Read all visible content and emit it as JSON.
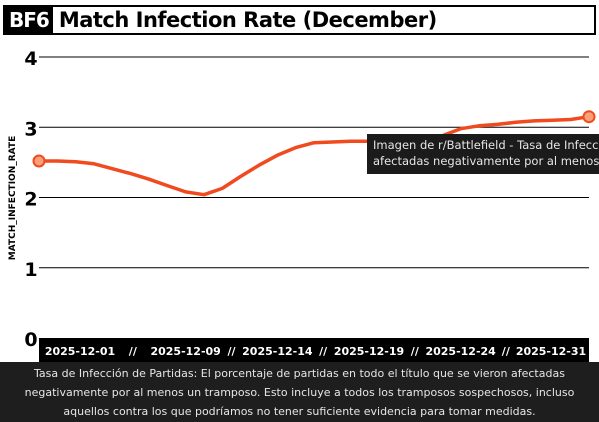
{
  "logo": "BF6",
  "tooltip": {
    "line1": "Imagen de r/Battlefield - Tasa de Infección de",
    "line2": "afectadas negativamente por al menos un tra"
  },
  "caption": "Tasa de Infección de Partidas: El porcentaje de partidas en todo el título que se vieron afectadas negativamente por al menos un tramposo. Esto incluye a todos los tramposos sospechosos, incluso aquellos contra los que podríamos no tener suficiente evidencia para tomar medidas.",
  "colors": {
    "line": "#f04a1e",
    "marker_fill": "#f8a07a",
    "axis_band": "#000000",
    "background": "#ffffff"
  },
  "chart_data": {
    "type": "line",
    "title": "Match Infection Rate (December)",
    "xlabel": "",
    "ylabel": "MATCH_INFECTION_RATE",
    "ylim": [
      0,
      4
    ],
    "yticks": [
      "0",
      "1",
      "2",
      "3",
      "4"
    ],
    "xlim": [
      "2025-12-01",
      "2025-12-31"
    ],
    "xticks": [
      "2025-12-01",
      "2025-12-09",
      "2025-12-14",
      "2025-12-19",
      "2025-12-24",
      "2025-12-31"
    ],
    "tick_separator": "//",
    "grid": true,
    "series": [
      {
        "x": [
          "2025-12-01",
          "2025-12-02",
          "2025-12-03",
          "2025-12-04",
          "2025-12-05",
          "2025-12-06",
          "2025-12-07",
          "2025-12-08",
          "2025-12-09",
          "2025-12-10",
          "2025-12-11",
          "2025-12-12",
          "2025-12-13",
          "2025-12-14",
          "2025-12-15",
          "2025-12-16",
          "2025-12-17",
          "2025-12-18",
          "2025-12-19",
          "2025-12-20",
          "2025-12-21",
          "2025-12-22",
          "2025-12-23",
          "2025-12-24",
          "2025-12-25",
          "2025-12-26",
          "2025-12-27",
          "2025-12-28",
          "2025-12-29",
          "2025-12-30",
          "2025-12-31"
        ],
        "values": [
          2.52,
          2.52,
          2.51,
          2.48,
          2.41,
          2.34,
          2.26,
          2.17,
          2.08,
          2.04,
          2.13,
          2.3,
          2.46,
          2.6,
          2.71,
          2.78,
          2.79,
          2.8,
          2.8,
          2.79,
          2.78,
          2.81,
          2.88,
          2.98,
          3.02,
          3.04,
          3.07,
          3.09,
          3.1,
          3.11,
          3.15
        ]
      }
    ]
  }
}
